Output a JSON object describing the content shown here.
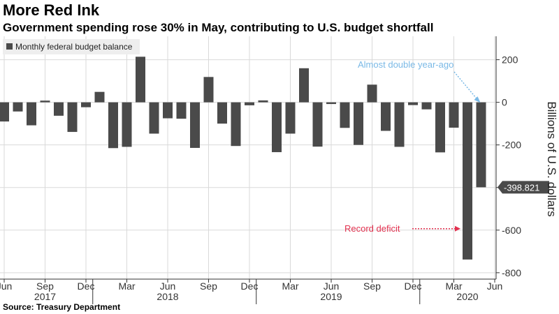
{
  "header": {
    "title": "More Red Ink",
    "subtitle": "Government spending rose 30% in May, contributing to U.S. budget shortfall"
  },
  "footer": {
    "source": "Source: Treasury Department"
  },
  "colors": {
    "bar": "#4a4a4a",
    "grid": "#d9d9d9",
    "annotation_blue": "#7ab9e6",
    "annotation_red": "#e2314f",
    "callout_bg": "#4a4a4a"
  },
  "chart_data": {
    "type": "bar",
    "title": "More Red Ink",
    "subtitle": "Government spending rose 30% in May, contributing to U.S. budget shortfall",
    "ylabel": "Billions of U.S. dollars",
    "xlabel": "",
    "ylim": [
      -830,
      310
    ],
    "y_ticks": [
      200,
      0,
      -200,
      -400,
      -600,
      -800
    ],
    "grid": true,
    "legend_position": "top-left",
    "y_axis_side": "right",
    "categories": [
      "2017-06",
      "2017-07",
      "2017-08",
      "2017-09",
      "2017-10",
      "2017-11",
      "2017-12",
      "2018-01",
      "2018-02",
      "2018-03",
      "2018-04",
      "2018-05",
      "2018-06",
      "2018-07",
      "2018-08",
      "2018-09",
      "2018-10",
      "2018-11",
      "2018-12",
      "2019-01",
      "2019-02",
      "2019-03",
      "2019-04",
      "2019-05",
      "2019-06",
      "2019-07",
      "2019-08",
      "2019-09",
      "2019-10",
      "2019-11",
      "2019-12",
      "2020-01",
      "2020-02",
      "2020-03",
      "2020-04",
      "2020-05"
    ],
    "series": [
      {
        "name": "Monthly federal budget balance",
        "values": [
          -90,
          -43,
          -108,
          8,
          -63,
          -139,
          -23,
          49,
          -215,
          -209,
          214,
          -147,
          -75,
          -77,
          -214,
          119,
          -100,
          -205,
          -14,
          9,
          -234,
          -147,
          160,
          -208,
          -8,
          -120,
          -200,
          83,
          -134,
          -209,
          -13,
          -33,
          -235,
          -119,
          -738,
          -398.821
        ]
      }
    ],
    "x_tick_labels": [
      {
        "label": "Jun",
        "index": 0
      },
      {
        "label": "Sep",
        "index": 3
      },
      {
        "label": "Dec",
        "index": 6
      },
      {
        "label": "Mar",
        "index": 9
      },
      {
        "label": "Jun",
        "index": 12
      },
      {
        "label": "Sep",
        "index": 15
      },
      {
        "label": "Dec",
        "index": 18
      },
      {
        "label": "Mar",
        "index": 21
      },
      {
        "label": "Jun",
        "index": 24
      },
      {
        "label": "Sep",
        "index": 27
      },
      {
        "label": "Dec",
        "index": 30
      },
      {
        "label": "Mar",
        "index": 33
      },
      {
        "label": "Jun",
        "index": 36
      }
    ],
    "year_labels": [
      {
        "label": "2017",
        "index": 3
      },
      {
        "label": "2018",
        "index": 12
      },
      {
        "label": "2019",
        "index": 24
      },
      {
        "label": "2020",
        "index": 34
      }
    ],
    "year_separators": [
      7,
      19,
      31
    ],
    "last_value_callout": "-398.821",
    "annotations": [
      {
        "text": "Almost double year-ago",
        "target_index": 35,
        "target_value": -5,
        "color": "blue"
      },
      {
        "text": "Record deficit",
        "target_index": 34,
        "target_value": -600,
        "color": "red"
      }
    ]
  }
}
